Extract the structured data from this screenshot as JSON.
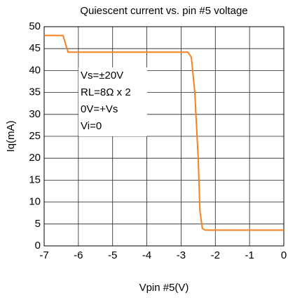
{
  "chart_data": {
    "type": "line",
    "title": "Quiescent current vs. pin #5 voltage",
    "xlabel": "Vpin #5(V)",
    "ylabel": "Iq(mA)",
    "annotations": [
      "Vs=±20V",
      "RL=8Ω x 2",
      "0V=+Vs",
      "Vi=0"
    ],
    "x": [
      -7,
      -6.45,
      -6.3,
      -2.8,
      -2.7,
      -2.6,
      -2.5,
      -2.45,
      -2.38,
      -2.3,
      0
    ],
    "values": [
      48,
      48,
      44.2,
      44.2,
      43,
      35,
      20,
      8,
      4,
      3.6,
      3.6
    ],
    "color": "#f58220",
    "xlim": [
      -7,
      0
    ],
    "xticks": [
      -7,
      -6,
      -5,
      -4,
      -3,
      -2,
      -1,
      0
    ],
    "ylim": [
      0,
      50
    ],
    "yticks": [
      0,
      5,
      10,
      15,
      20,
      25,
      30,
      35,
      40,
      45,
      50
    ],
    "grid": true
  }
}
